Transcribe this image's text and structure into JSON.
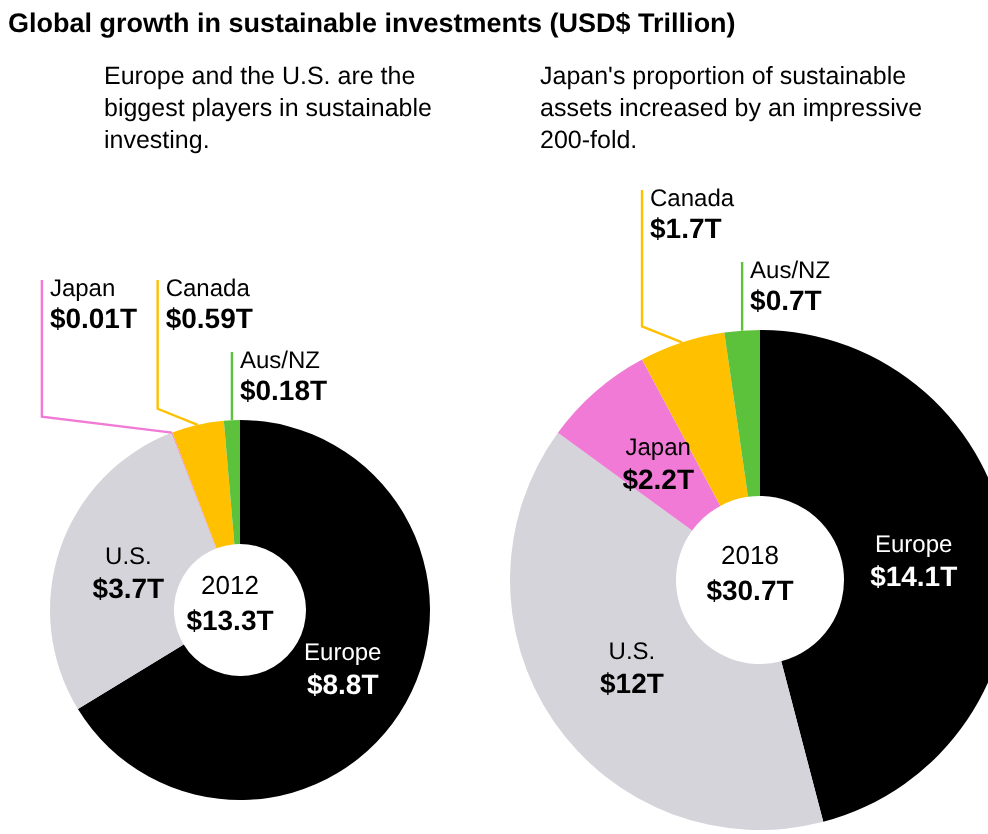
{
  "chart_data": [
    {
      "type": "donut",
      "title": "Global growth in sustainable investments (USD$ Trillion)",
      "annotations": [
        "Europe and the U.S. are the biggest players in sustainable investing.",
        "2012",
        "$13.3T"
      ],
      "categories": [
        "Europe",
        "U.S.",
        "Japan",
        "Canada",
        "Aus/NZ"
      ],
      "values": [
        8.8,
        3.7,
        0.01,
        0.59,
        0.18
      ],
      "value_labels": [
        "$8.8T",
        "$3.7T",
        "$0.01T",
        "$0.59T",
        "$0.18T"
      ],
      "colors": [
        "#000000",
        "#d4d4da",
        "#f07ad6",
        "#ffc000",
        "#5cc23c"
      ]
    },
    {
      "type": "donut",
      "annotations": [
        "Japan's proportion of sustainable assets increased by an impressive 200-fold.",
        "2018",
        "$30.7T"
      ],
      "categories": [
        "Europe",
        "U.S.",
        "Japan",
        "Canada",
        "Aus/NZ"
      ],
      "values": [
        14.1,
        12,
        2.2,
        1.7,
        0.7
      ],
      "value_labels": [
        "$14.1T",
        "$12T",
        "$2.2T",
        "$1.7T",
        "$0.7T"
      ],
      "colors": [
        "#000000",
        "#d4d4da",
        "#f07ad6",
        "#ffc000",
        "#5cc23c"
      ]
    }
  ]
}
